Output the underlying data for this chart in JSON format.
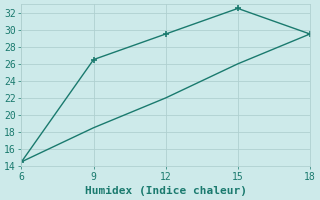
{
  "x": [
    6,
    9,
    12,
    15,
    18
  ],
  "y_upper": [
    14.5,
    26.5,
    29.5,
    32.5,
    29.5
  ],
  "y_lower": [
    14.5,
    18.5,
    22.0,
    26.0,
    29.5
  ],
  "xlabel": "Humidex (Indice chaleur)",
  "xlim": [
    6,
    18
  ],
  "ylim": [
    14,
    33
  ],
  "xticks": [
    6,
    9,
    12,
    15,
    18
  ],
  "yticks": [
    14,
    16,
    18,
    20,
    22,
    24,
    26,
    28,
    30,
    32
  ],
  "line_color": "#1a7a6e",
  "marker": "+",
  "marker_size": 5,
  "bg_color": "#cdeaea",
  "grid_color": "#b0d0d0",
  "font_family": "monospace",
  "tick_fontsize": 7,
  "xlabel_fontsize": 8
}
